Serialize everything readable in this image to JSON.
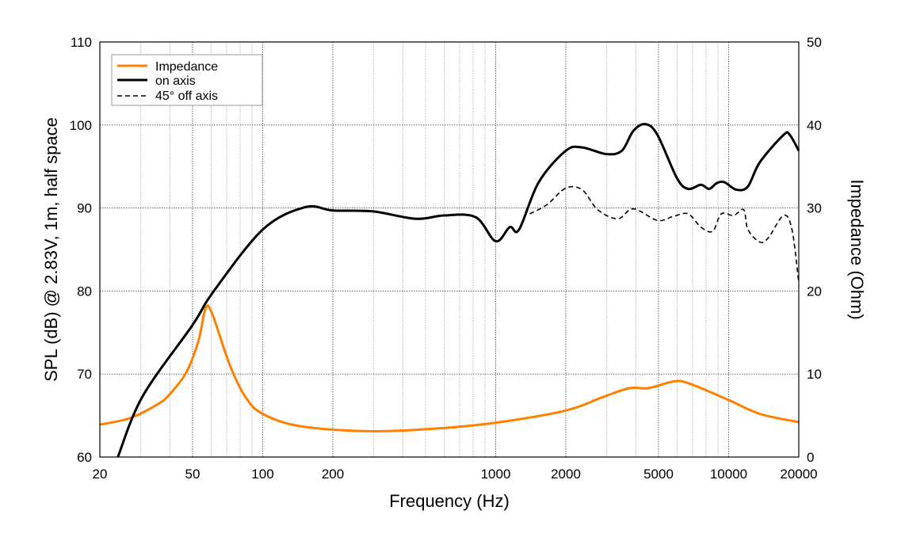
{
  "chart_data": {
    "type": "line",
    "xlabel": "Frequency (Hz)",
    "ylabel": "SPL (dB) @ 2.83V, 1m, half space",
    "y2label": "Impedance (Ohm)",
    "xscale": "log",
    "xlim": [
      20,
      20000
    ],
    "ylim": [
      60,
      110
    ],
    "y2lim": [
      0,
      50
    ],
    "grid": true,
    "legend_position": "top-left",
    "x_ticks": [
      20,
      50,
      100,
      200,
      1000,
      2000,
      5000,
      10000,
      20000
    ],
    "y_ticks": [
      60,
      70,
      80,
      90,
      100,
      110
    ],
    "y2_ticks": [
      0,
      10,
      20,
      30,
      40,
      50
    ],
    "series": [
      {
        "name": "Impedance",
        "axis": "right",
        "color": "#ff8000",
        "style": "solid",
        "x": [
          20,
          27,
          35.6,
          40,
          47,
          53,
          57,
          61,
          72,
          84,
          100,
          146,
          296,
          600,
          1040,
          2000,
          2870,
          3750,
          4530,
          5800,
          6700,
          9950,
          13600,
          20000
        ],
        "y": [
          3.9,
          4.7,
          6.4,
          7.6,
          10.2,
          14.0,
          18.0,
          17.1,
          11.2,
          7.3,
          5.2,
          3.7,
          3.1,
          3.5,
          4.2,
          5.6,
          7.2,
          8.3,
          8.3,
          9.1,
          8.9,
          6.9,
          5.2,
          4.2
        ]
      },
      {
        "name": "on axis",
        "axis": "left",
        "color": "#000000",
        "style": "solid",
        "x": [
          23.9,
          30.5,
          50,
          61,
          100,
          152,
          200,
          296,
          453,
          600,
          820,
          1000,
          1150,
          1260,
          1530,
          2000,
          2350,
          2980,
          3480,
          3900,
          4400,
          4950,
          6000,
          6700,
          7600,
          8240,
          8900,
          9600,
          10800,
          12100,
          13600,
          17200,
          18300,
          20000
        ],
        "y": [
          60,
          67.3,
          75.9,
          79.8,
          87.4,
          90.1,
          89.7,
          89.6,
          88.7,
          89.1,
          88.9,
          86.0,
          87.7,
          87.4,
          93.1,
          96.9,
          97.3,
          96.5,
          96.9,
          99.3,
          100.1,
          98.8,
          93.6,
          92.3,
          92.8,
          92.3,
          93.0,
          93.1,
          92.2,
          92.6,
          95.5,
          98.8,
          98.8,
          96.9
        ]
      },
      {
        "name": "45° off axis",
        "axis": "left",
        "color": "#000000",
        "style": "dashed",
        "x": [
          1400,
          1660,
          2000,
          2350,
          2740,
          3340,
          3900,
          4950,
          5800,
          6700,
          7600,
          8540,
          9300,
          10500,
          11600,
          12100,
          13600,
          14800,
          17200,
          18700,
          20000
        ],
        "y": [
          89.3,
          90.4,
          92.4,
          92.2,
          89.8,
          88.7,
          89.9,
          88.5,
          89.0,
          89.3,
          87.7,
          87.2,
          89.3,
          89.1,
          89.8,
          87.4,
          85.9,
          86.4,
          89.1,
          87.4,
          81.0
        ]
      }
    ]
  }
}
